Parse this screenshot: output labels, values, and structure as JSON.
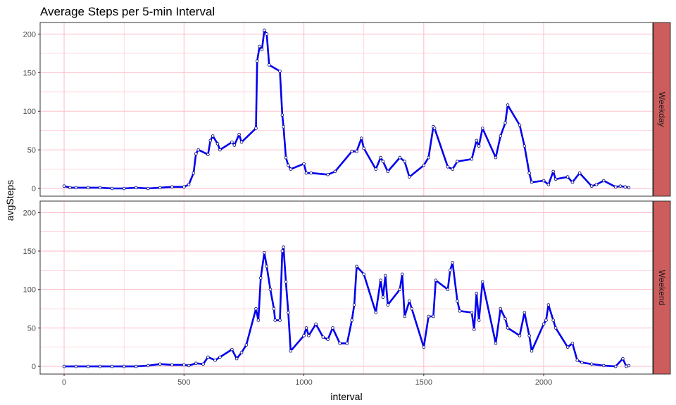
{
  "chart_data": {
    "type": "line",
    "title": "Average Steps per 5-min Interval",
    "xlabel": "interval",
    "ylabel": "avgSteps",
    "xlim": [
      -100,
      2455
    ],
    "ylim": [
      -10,
      215
    ],
    "x_ticks": [
      0,
      500,
      1000,
      1500,
      2000
    ],
    "y_ticks": [
      0,
      50,
      100,
      150,
      200
    ],
    "grid": true,
    "colors": {
      "line": "#0000ee",
      "point_fill": "#ffffff",
      "point_stroke": "#000080",
      "grid": "#ffc0cb",
      "strip": "#cd5c5c",
      "panel_border": "#333333"
    },
    "panels": [
      {
        "label": "Weekday",
        "series": [
          {
            "x": [
              0,
              25,
              50,
              100,
              150,
              200,
              250,
              300,
              350,
              400,
              450,
              500,
              520,
              540,
              550,
              560,
              600,
              610,
              620,
              640,
              650,
              700,
              710,
              730,
              740,
              800,
              805,
              815,
              825,
              835,
              845,
              855,
              900,
              910,
              915,
              925,
              935,
              945,
              1000,
              1010,
              1030,
              1100,
              1130,
              1200,
              1220,
              1240,
              1250,
              1300,
              1320,
              1330,
              1350,
              1400,
              1420,
              1440,
              1500,
              1520,
              1540,
              1545,
              1600,
              1620,
              1640,
              1700,
              1720,
              1730,
              1745,
              1800,
              1820,
              1840,
              1850,
              1900,
              1920,
              1940,
              1950,
              2000,
              2020,
              2040,
              2050,
              2100,
              2120,
              2150,
              2200,
              2220,
              2250,
              2300,
              2320,
              2340,
              2355
            ],
            "values": [
              3,
              1,
              1,
              1,
              1,
              0,
              0,
              1,
              0,
              1,
              2,
              2,
              5,
              20,
              45,
              50,
              44,
              62,
              68,
              58,
              50,
              60,
              56,
              70,
              60,
              78,
              165,
              184,
              180,
              205,
              200,
              160,
              152,
              95,
              80,
              40,
              30,
              25,
              32,
              20,
              20,
              18,
              22,
              48,
              48,
              65,
              52,
              25,
              40,
              35,
              22,
              40,
              35,
              15,
              30,
              40,
              80,
              78,
              28,
              25,
              35,
              38,
              62,
              55,
              78,
              40,
              68,
              85,
              108,
              82,
              55,
              20,
              8,
              10,
              5,
              22,
              12,
              15,
              8,
              20,
              3,
              5,
              10,
              2,
              3,
              2,
              1
            ]
          }
        ]
      },
      {
        "label": "Weekend",
        "series": [
          {
            "x": [
              0,
              50,
              100,
              150,
              200,
              250,
              300,
              350,
              400,
              450,
              500,
              520,
              550,
              580,
              600,
              630,
              650,
              700,
              720,
              740,
              760,
              800,
              810,
              820,
              835,
              845,
              860,
              875,
              880,
              900,
              910,
              915,
              925,
              935,
              945,
              1000,
              1010,
              1020,
              1050,
              1080,
              1100,
              1120,
              1150,
              1180,
              1200,
              1210,
              1220,
              1250,
              1300,
              1320,
              1330,
              1340,
              1350,
              1400,
              1410,
              1420,
              1440,
              1450,
              1500,
              1520,
              1540,
              1550,
              1600,
              1610,
              1620,
              1640,
              1650,
              1700,
              1710,
              1720,
              1730,
              1745,
              1800,
              1820,
              1840,
              1850,
              1900,
              1920,
              1940,
              1950,
              2000,
              2010,
              2020,
              2040,
              2050,
              2100,
              2120,
              2140,
              2160,
              2200,
              2250,
              2300,
              2330,
              2345,
              2355
            ],
            "values": [
              0,
              0,
              0,
              0,
              0,
              0,
              0,
              1,
              3,
              2,
              2,
              1,
              4,
              3,
              12,
              8,
              12,
              22,
              10,
              18,
              28,
              75,
              60,
              115,
              148,
              130,
              100,
              75,
              60,
              60,
              150,
              155,
              110,
              70,
              20,
              40,
              50,
              40,
              55,
              38,
              35,
              50,
              30,
              30,
              60,
              80,
              130,
              120,
              70,
              112,
              90,
              118,
              80,
              100,
              120,
              65,
              85,
              75,
              25,
              65,
              65,
              112,
              100,
              125,
              135,
              85,
              72,
              70,
              48,
              95,
              60,
              110,
              30,
              75,
              62,
              50,
              40,
              70,
              40,
              20,
              55,
              60,
              80,
              60,
              50,
              25,
              30,
              8,
              5,
              3,
              1,
              0,
              10,
              0,
              1
            ]
          }
        ]
      }
    ]
  }
}
